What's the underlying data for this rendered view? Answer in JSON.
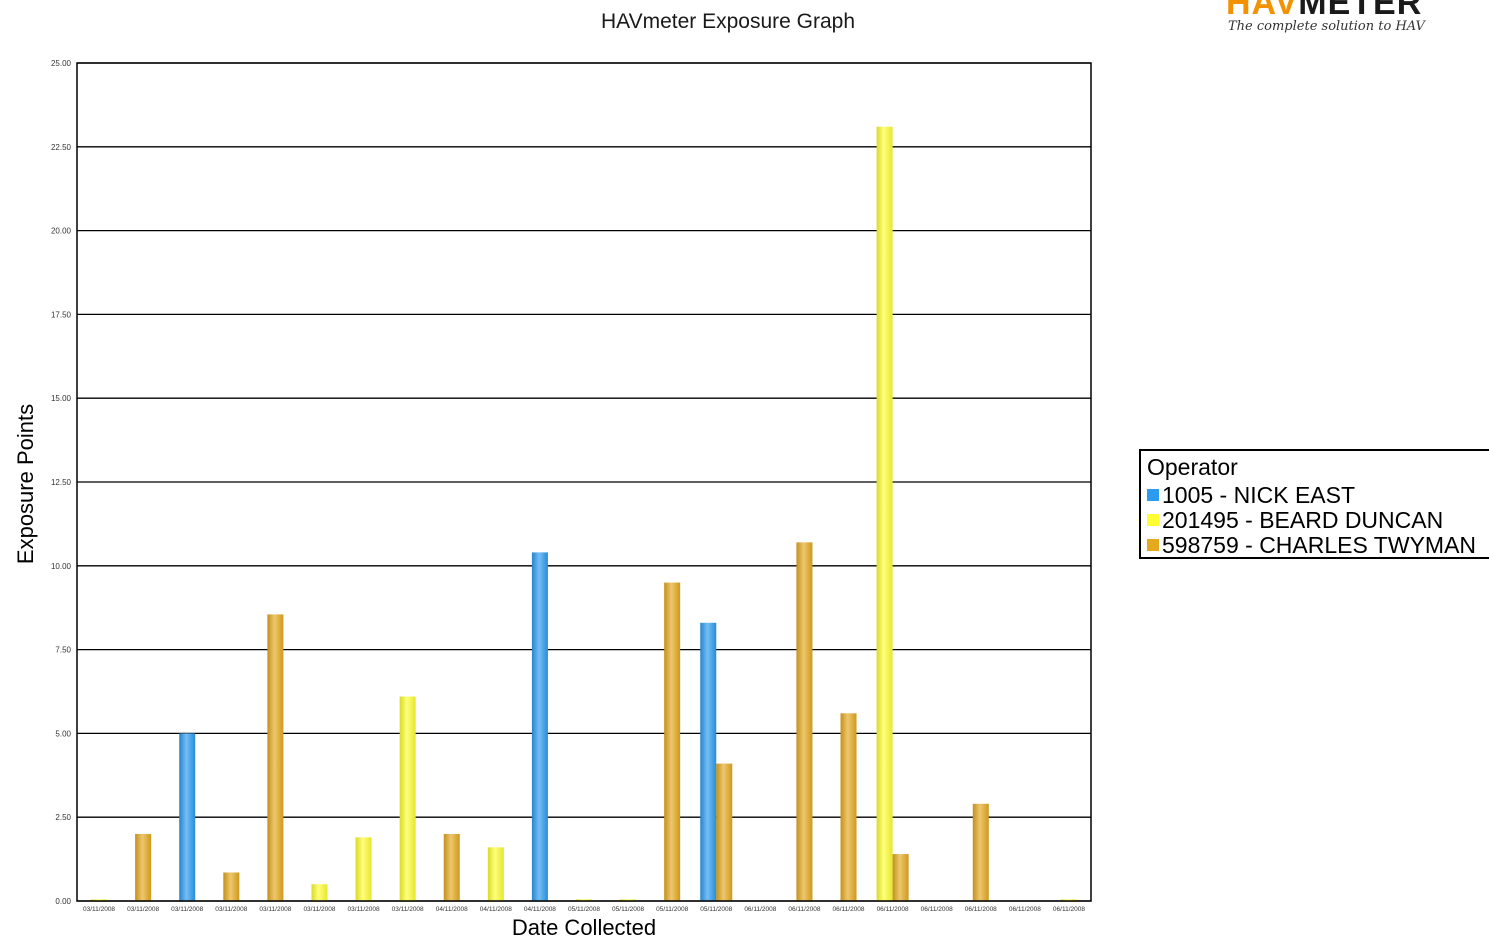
{
  "logo": {
    "brand_hav": "HAV",
    "brand_meter": "METER",
    "tagline": "The complete solution to HAV"
  },
  "chart_data": {
    "type": "bar",
    "title": "HAVmeter Exposure Graph",
    "xlabel": "Date Collected",
    "ylabel": "Exposure Points",
    "ylim": [
      0,
      25
    ],
    "yticks": [
      "0.00",
      "2.50",
      "5.00",
      "7.50",
      "10.00",
      "12.50",
      "15.00",
      "17.50",
      "20.00",
      "22.50",
      "25.00"
    ],
    "grid": true,
    "legend_title": "Operator",
    "legend_position": "right",
    "categories": [
      "03/11/2008",
      "03/11/2008",
      "03/11/2008",
      "03/11/2008",
      "03/11/2008",
      "03/11/2008",
      "03/11/2008",
      "03/11/2008",
      "04/11/2008",
      "04/11/2008",
      "04/11/2008",
      "05/11/2008",
      "05/11/2008",
      "05/11/2008",
      "05/11/2008",
      "06/11/2008",
      "06/11/2008",
      "06/11/2008",
      "06/11/2008",
      "06/11/2008",
      "06/11/2008",
      "06/11/2008",
      "06/11/2008"
    ],
    "series": [
      {
        "name": "1005 - NICK EAST",
        "color": "#2b9bf0",
        "values": [
          0,
          0,
          5.0,
          0,
          0,
          0,
          0,
          0,
          0,
          0,
          10.4,
          0,
          0,
          0,
          8.3,
          0,
          0,
          0,
          0,
          0,
          0,
          0,
          0
        ]
      },
      {
        "name": "201495 - BEARD DUNCAN",
        "color": "#ffff33",
        "values": [
          0.05,
          0,
          0,
          0,
          0,
          0.5,
          1.9,
          6.1,
          0,
          1.6,
          0,
          0.05,
          0.05,
          0,
          0,
          0,
          0,
          0,
          23.1,
          0,
          0,
          0,
          0.05
        ]
      },
      {
        "name": "598759 - CHARLES TWYMAN",
        "color": "#e5a91e",
        "values": [
          0,
          2.0,
          0,
          0.85,
          8.55,
          0,
          0,
          0,
          2.0,
          0,
          0,
          0,
          0,
          9.5,
          4.1,
          0,
          10.7,
          5.6,
          1.4,
          0,
          2.9,
          0,
          0
        ]
      }
    ]
  }
}
